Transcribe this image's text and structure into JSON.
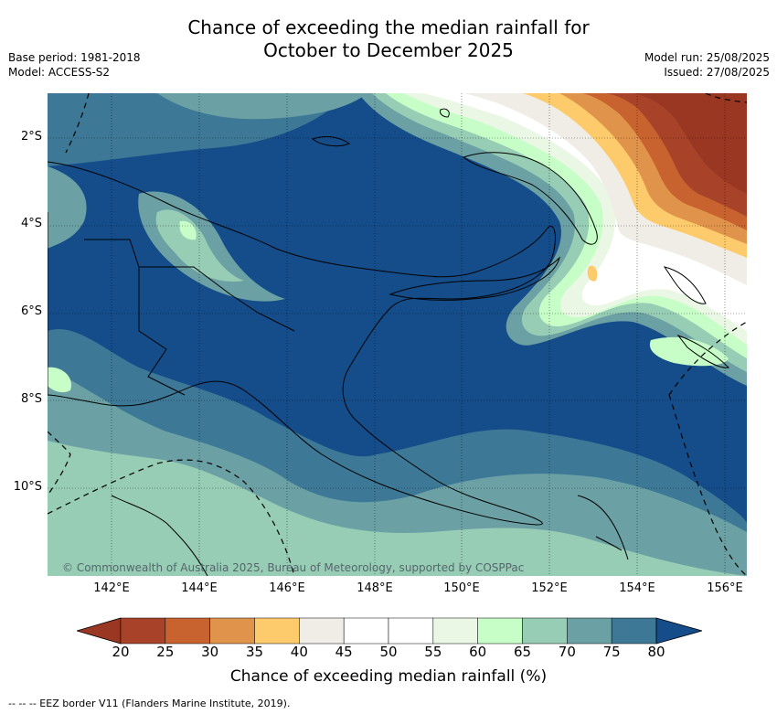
{
  "title": {
    "line1": "Chance of exceeding the median rainfall for",
    "line2": "October to December 2025"
  },
  "meta_left": {
    "base_period": "Base period: 1981-2018",
    "model": "Model: ACCESS-S2"
  },
  "meta_right": {
    "model_run": "Model run: 25/08/2025",
    "issued": "Issued: 27/08/2025"
  },
  "map": {
    "copyright": "© Commonwealth of Australia 2025, Bureau of Meteorology, supported by COSPPac",
    "lat_labels": [
      "2°S",
      "4°S",
      "6°S",
      "8°S",
      "10°S"
    ],
    "lon_labels": [
      "142°E",
      "144°E",
      "146°E",
      "148°E",
      "150°E",
      "152°E",
      "154°E",
      "156°E"
    ]
  },
  "colorbar": {
    "ticks": [
      "20",
      "25",
      "30",
      "35",
      "40",
      "45",
      "50",
      "55",
      "60",
      "65",
      "70",
      "75",
      "80"
    ],
    "colors": [
      "#a8432a",
      "#c8622e",
      "#e0934a",
      "#fdcb6c",
      "#f0ede7",
      "#ffffff",
      "#ffffff",
      "#eaf7e5",
      "#c7fdc6",
      "#97ccb5",
      "#6ba1a4",
      "#3d7896"
    ],
    "low_color": "#993722",
    "high_color": "#154d8a",
    "label": "Chance of exceeding median rainfall (%)"
  },
  "footnote": "--  --  -- EEZ border V11 (Flanders Marine Institute, 2019)."
}
